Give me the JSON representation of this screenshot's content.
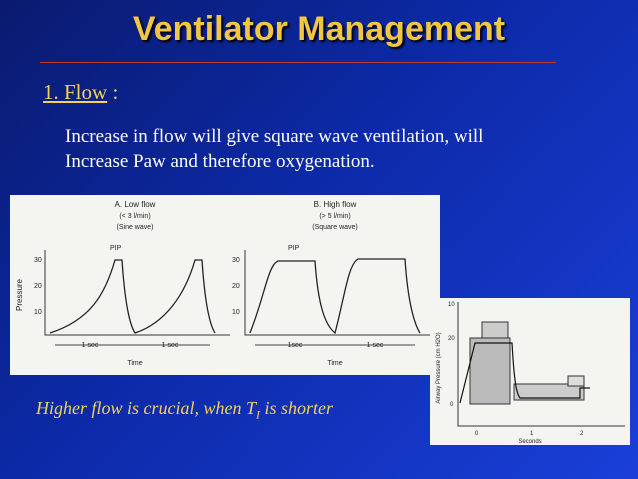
{
  "title": "Ventilator Management",
  "section": {
    "label": "1. Flow",
    "colon": ":"
  },
  "body": [
    "Increase in flow will give square wave ventilation, will",
    "Increase Paw and therefore oxygenation."
  ],
  "figure_left": {
    "y_label": "Pressure",
    "yticks": [
      "30",
      "20",
      "10"
    ],
    "x_label": "Time",
    "panels": [
      {
        "title": "A. Low flow",
        "subtitle": "(< 3 l/min)",
        "wave": "(Sine wave)",
        "peak_label": "PIP",
        "span_labels": [
          "1 sec",
          "1 sec"
        ]
      },
      {
        "title": "B. High flow",
        "subtitle": "(> 5 l/min)",
        "wave": "(Square wave)",
        "peak_label": "PIP",
        "span_labels": [
          "1sec",
          "1 sec"
        ]
      }
    ]
  },
  "figure_right": {
    "y_label": "Airway Pressure (cm H2O)",
    "yticks": [
      "10",
      "20",
      "0"
    ],
    "xticks": [
      "0",
      "1",
      "2"
    ],
    "x_label": "Seconds"
  },
  "note": {
    "text": "Higher flow is crucial, when T",
    "subscript": "I",
    "text_end": "is shorter"
  }
}
